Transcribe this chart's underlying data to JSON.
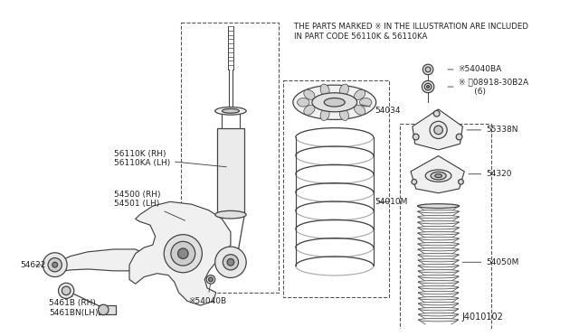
{
  "bg_color": "#ffffff",
  "fig_width": 6.4,
  "fig_height": 3.72,
  "dpi": 100,
  "notice_line1": "THE PARTS MARKED ※ IN THE ILLUSTRATION ARE INCLUDED",
  "notice_line2": "IN PART CODE 56110K & 56110KA",
  "diagram_id": "J4010102",
  "line_color": "#444444",
  "text_color": "#222222",
  "dash_color": "#555555",
  "gray_fill": "#e8e8e8",
  "dark_gray": "#999999",
  "mid_gray": "#cccccc"
}
